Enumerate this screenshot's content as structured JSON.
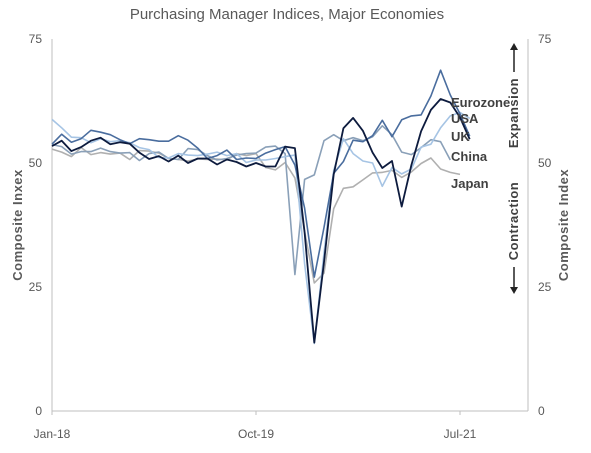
{
  "chart_data": {
    "type": "line",
    "title": "Purchasing Manager Indices, Major Economies",
    "ylabel_left": "Composite  Inxex",
    "ylabel_right": "Composite  Index",
    "annotation_up": "Expansion",
    "annotation_down": "Contraction",
    "ylim": [
      0,
      75
    ],
    "yticks": [
      0,
      25,
      50,
      75
    ],
    "ytick_labels": [
      "0",
      "25",
      "50",
      "75"
    ],
    "xlim": [
      0,
      49
    ],
    "xticks": [
      {
        "index": 0,
        "label": "Jan-18"
      },
      {
        "index": 21,
        "label": "Oct-19"
      },
      {
        "index": 42,
        "label": "Jul-21"
      }
    ],
    "grid": false,
    "legend": "inline-right",
    "series": [
      {
        "name": "Eurozone",
        "color": "#a6c4e4",
        "values": [
          58.8,
          57.1,
          55.2,
          55.1,
          54.1,
          54.9,
          54.3,
          54.5,
          54.1,
          53.1,
          52.7,
          51.1,
          51.0,
          51.9,
          51.6,
          51.5,
          51.8,
          52.2,
          51.5,
          51.9,
          50.1,
          50.6,
          50.6,
          50.9,
          51.3,
          51.6,
          29.7,
          13.6,
          31.9,
          48.5,
          54.9,
          51.9,
          50.4,
          50.0,
          45.3,
          49.1,
          47.8,
          48.8,
          53.2,
          53.8,
          57.1,
          59.5,
          60.2,
          59.0
        ]
      },
      {
        "name": "USA",
        "color": "#4a6d9e",
        "values": [
          53.8,
          55.8,
          54.2,
          54.9,
          56.6,
          56.2,
          55.7,
          54.7,
          53.9,
          54.9,
          54.7,
          54.4,
          54.4,
          55.5,
          54.6,
          53.0,
          50.9,
          51.5,
          52.6,
          50.7,
          51.0,
          50.9,
          52.0,
          52.7,
          53.3,
          49.6,
          40.9,
          27.0,
          37.0,
          47.9,
          50.3,
          54.6,
          54.3,
          55.5,
          58.6,
          55.3,
          58.7,
          59.5,
          59.7,
          63.5,
          68.7,
          63.7,
          59.9,
          55.4
        ]
      },
      {
        "name": "UK",
        "color": "#0d1b3e",
        "values": [
          53.4,
          54.5,
          52.4,
          53.2,
          54.5,
          55.1,
          53.8,
          54.2,
          53.9,
          52.1,
          50.8,
          51.4,
          50.3,
          51.5,
          50.0,
          50.9,
          50.9,
          49.7,
          50.7,
          50.2,
          49.3,
          50.0,
          49.3,
          49.3,
          53.3,
          53.0,
          36.0,
          13.8,
          30.0,
          47.7,
          57.0,
          59.1,
          56.5,
          52.1,
          49.0,
          50.4,
          41.2,
          49.6,
          56.4,
          60.7,
          62.9,
          62.2,
          59.2,
          54.8
        ]
      },
      {
        "name": "China",
        "color": "#8aa0b8",
        "values": [
          53.7,
          53.3,
          51.8,
          52.3,
          52.3,
          53.0,
          52.3,
          52.0,
          52.1,
          50.5,
          51.9,
          52.2,
          50.9,
          50.7,
          52.9,
          52.7,
          51.5,
          50.6,
          50.9,
          51.6,
          51.9,
          52.0,
          53.2,
          53.4,
          51.9,
          27.5,
          46.7,
          47.6,
          54.5,
          55.7,
          54.5,
          55.1,
          54.5,
          55.3,
          57.5,
          55.7,
          52.2,
          51.7,
          53.1,
          54.7,
          54.3,
          50.6
        ]
      },
      {
        "name": "Japan",
        "color": "#b0b0b0",
        "values": [
          52.8,
          52.2,
          51.3,
          53.1,
          51.7,
          52.1,
          51.8,
          52.0,
          50.7,
          52.5,
          52.4,
          52.0,
          50.9,
          50.7,
          50.4,
          50.8,
          50.7,
          50.8,
          50.6,
          51.9,
          51.5,
          51.9,
          49.1,
          48.6,
          50.1,
          47.0,
          36.2,
          25.8,
          27.8,
          40.8,
          44.9,
          45.2,
          46.6,
          48.0,
          48.1,
          48.5,
          47.1,
          48.2,
          49.9,
          51.0,
          48.8,
          48.1,
          47.7
        ]
      }
    ],
    "series_label_offsets_note": ""
  }
}
